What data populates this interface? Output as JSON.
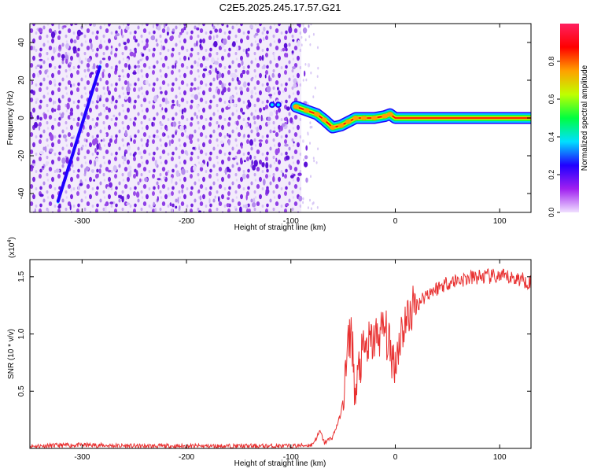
{
  "title": "C2E5.2025.245.17.57.G21",
  "chart_data": [
    {
      "type": "heatmap",
      "name": "spectrogram",
      "title": "C2E5.2025.245.17.57.G21",
      "xlabel": "Height of straight line (km)",
      "ylabel": "Frequency (Hz)",
      "xlim": [
        -350,
        130
      ],
      "ylim": [
        -50,
        50
      ],
      "xticks": [
        -300,
        -200,
        -100,
        0,
        100
      ],
      "yticks": [
        -40,
        -20,
        0,
        20,
        40
      ],
      "noise_region_x": [
        -350,
        -90
      ],
      "signal_track": [
        {
          "x": -95,
          "y": 6
        },
        {
          "x": -85,
          "y": 4
        },
        {
          "x": -75,
          "y": 2
        },
        {
          "x": -68,
          "y": -1
        },
        {
          "x": -60,
          "y": -5
        },
        {
          "x": -52,
          "y": -4
        },
        {
          "x": -45,
          "y": -2
        },
        {
          "x": -38,
          "y": 0
        },
        {
          "x": -30,
          "y": 0
        },
        {
          "x": -20,
          "y": 0
        },
        {
          "x": -10,
          "y": 1
        },
        {
          "x": -5,
          "y": 2
        },
        {
          "x": 0,
          "y": 0
        },
        {
          "x": 50,
          "y": 0
        },
        {
          "x": 100,
          "y": 0
        },
        {
          "x": 130,
          "y": 0
        }
      ],
      "streak": {
        "x_start": -323,
        "y_start": -44,
        "x_end": -283,
        "y_end": 27
      },
      "colorbar": {
        "label": "Normalized spectral amplitude",
        "ticks": [
          "0.0",
          "0.2",
          "0.4",
          "0.6",
          "0.8"
        ],
        "range": [
          0,
          1
        ],
        "colors": [
          "#f0e0ff",
          "#a020f0",
          "#2000ff",
          "#00e0ff",
          "#00ff40",
          "#c0ff00",
          "#ffa000",
          "#ff0000",
          "#ff2060"
        ]
      }
    },
    {
      "type": "line",
      "name": "snr",
      "xlabel": "Height of straight line (km)",
      "ylabel": "SNR (10 * v/v)",
      "multiplier": "(x10",
      "multiplier_exp": "4",
      "xlim": [
        -350,
        130
      ],
      "ylim": [
        0,
        1.65
      ],
      "xticks": [
        -300,
        -200,
        -100,
        0,
        100
      ],
      "yticks": [
        0.5,
        1.0,
        1.5
      ],
      "ytick_labels": [
        "0.5",
        "1.0",
        "1.5"
      ],
      "color": "#e83030",
      "series": [
        {
          "name": "SNR",
          "x": [
            -350,
            -300,
            -250,
            -200,
            -150,
            -100,
            -80,
            -75,
            -72,
            -68,
            -60,
            -52,
            -48,
            -45,
            -42,
            -38,
            -35,
            -30,
            -25,
            -20,
            -15,
            -10,
            -5,
            0,
            5,
            10,
            15,
            20,
            25,
            30,
            40,
            50,
            60,
            80,
            100,
            120,
            130
          ],
          "y": [
            0.02,
            0.03,
            0.02,
            0.02,
            0.02,
            0.02,
            0.03,
            0.1,
            0.15,
            0.05,
            0.1,
            0.3,
            0.6,
            0.9,
            1.05,
            0.4,
            0.7,
            0.85,
            0.9,
            0.95,
            1.0,
            1.05,
            0.85,
            0.75,
            1.0,
            1.1,
            1.2,
            1.25,
            1.3,
            1.35,
            1.4,
            1.45,
            1.47,
            1.5,
            1.5,
            1.48,
            1.45
          ]
        }
      ]
    }
  ]
}
